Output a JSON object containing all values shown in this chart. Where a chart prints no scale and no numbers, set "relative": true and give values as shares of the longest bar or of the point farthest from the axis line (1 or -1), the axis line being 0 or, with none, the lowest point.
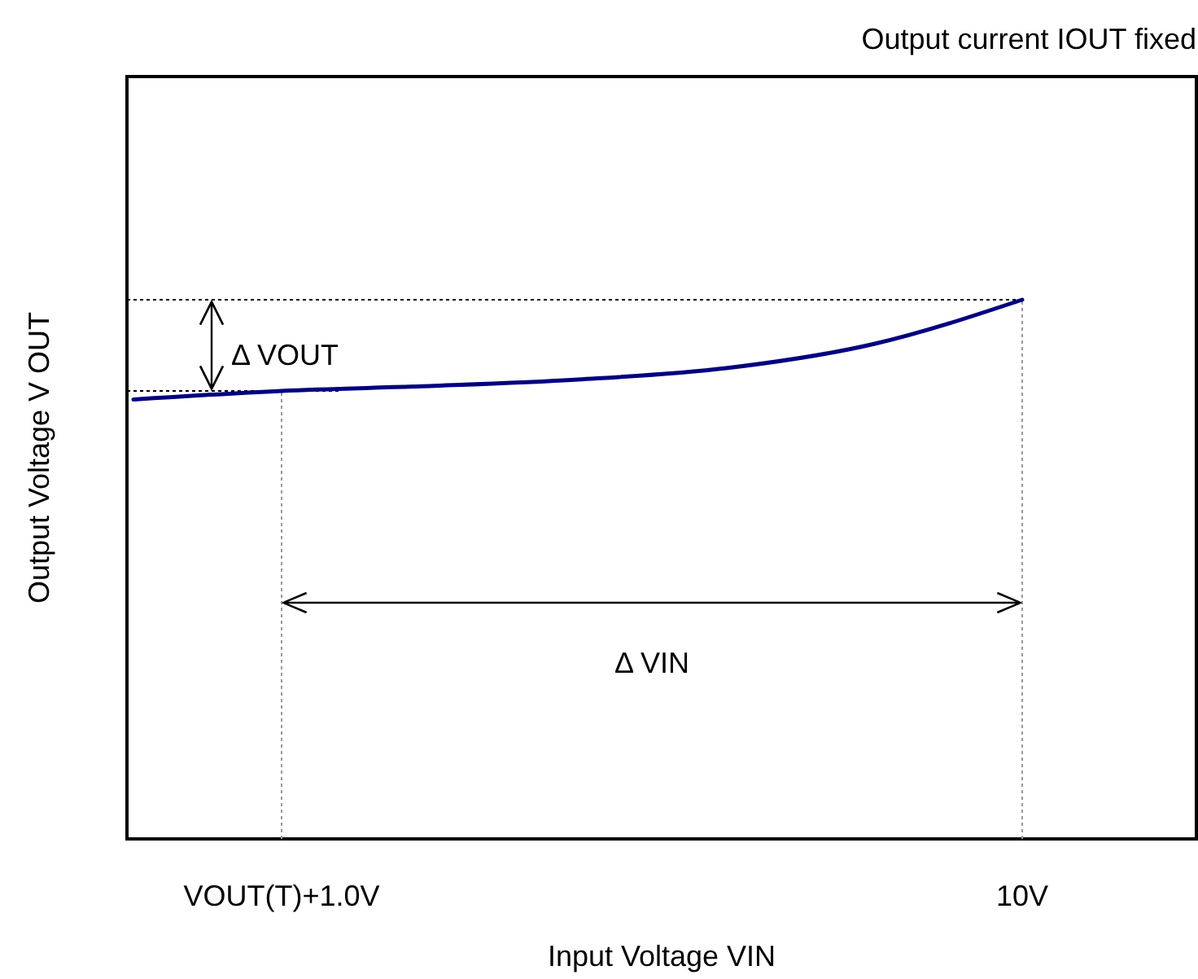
{
  "chart_data": {
    "type": "line",
    "relative": true,
    "xlabel": "Input Voltage VIN",
    "ylabel": "Output Voltage V OUT",
    "categories": [
      null,
      "VOUT(T)+1.0V",
      null,
      null,
      null,
      null,
      "10V"
    ],
    "series": [
      {
        "color": "#000080",
        "values": [
          0.815,
          0.831,
          0.84,
          0.852,
          0.873,
          0.918,
          1
        ]
      }
    ],
    "ref_lines": [
      {
        "axis": "y",
        "value": 1,
        "color": "#000000",
        "line_style": "dotted"
      },
      {
        "axis": "y",
        "value": 0.831,
        "color": "#000000",
        "line_style": "dotted"
      },
      {
        "axis": "x",
        "value": "VOUT(T)+1.0V",
        "color": "#999999",
        "line_style": "dotted"
      },
      {
        "axis": "x",
        "value": "10V",
        "color": "#999999",
        "line_style": "dotted"
      }
    ],
    "annotations": [
      "Output current IOUT fixed",
      "Δ VOUT",
      "Δ VIN"
    ],
    "marker": "none",
    "line_style": "solid"
  }
}
